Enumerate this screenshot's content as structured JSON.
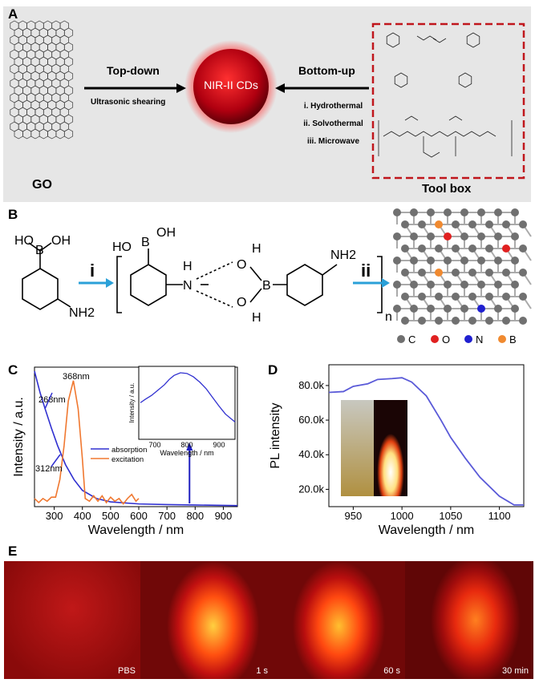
{
  "panel_a": {
    "label": "A",
    "go_label": "GO",
    "top_down": "Top-down",
    "top_down_method": "Ultrasonic shearing",
    "center": "NIR-II CDs",
    "bottom_up": "Bottom-up",
    "bottom_up_methods": [
      "i. Hydrothermal",
      "ii. Solvothermal",
      "iii. Microwave"
    ],
    "toolbox_label": "Tool box",
    "colors": {
      "background": "#e6e6e6",
      "sphere": "#c0101a",
      "toolbox_border": "#c0161c"
    }
  },
  "panel_b": {
    "label": "B",
    "step_i": "i",
    "step_ii": "ii",
    "subscript_n": "n",
    "monomer": {
      "b": "B",
      "ho": "HO",
      "oh": "OH",
      "nh2": "NH2"
    },
    "legend": [
      {
        "symbol": "C",
        "color": "#707070"
      },
      {
        "symbol": "O",
        "color": "#e02020"
      },
      {
        "symbol": "N",
        "color": "#2020d0"
      },
      {
        "symbol": "B",
        "color": "#f08a30"
      }
    ]
  },
  "panel_c": {
    "label": "C"
  },
  "panel_d": {
    "label": "D"
  },
  "panel_e": {
    "label": "E",
    "frames": [
      "PBS",
      "1 s",
      "60 s",
      "30 min"
    ]
  },
  "chart_data": [
    {
      "type": "line",
      "panel": "C",
      "xlabel": "Wavelength / nm",
      "ylabel": "Intensity / a.u.",
      "xlim": [
        230,
        950
      ],
      "xticks": [
        300,
        400,
        500,
        600,
        700,
        800,
        900
      ],
      "legend_placement": "center",
      "series": [
        {
          "name": "absorption",
          "color": "#3030d0",
          "x": [
            230,
            250,
            268,
            290,
            312,
            340,
            370,
            400,
            450,
            500,
            600,
            700,
            800,
            950
          ],
          "y": [
            1.0,
            0.84,
            0.72,
            0.58,
            0.45,
            0.31,
            0.2,
            0.12,
            0.06,
            0.035,
            0.02,
            0.015,
            0.012,
            0.008
          ]
        },
        {
          "name": "excitation",
          "color": "#f07830",
          "x": [
            230,
            245,
            260,
            275,
            290,
            305,
            320,
            335,
            350,
            368,
            385,
            400,
            410,
            425,
            440,
            455,
            470,
            485,
            500,
            515,
            530,
            545,
            560,
            575,
            590,
            600
          ],
          "y": [
            0.06,
            0.03,
            0.06,
            0.04,
            0.07,
            0.07,
            0.2,
            0.45,
            0.78,
            0.93,
            0.72,
            0.35,
            0.06,
            0.04,
            0.08,
            0.04,
            0.08,
            0.03,
            0.07,
            0.04,
            0.06,
            0.02,
            0.06,
            0.09,
            0.04,
            0.06
          ]
        }
      ],
      "annotations": [
        "268nm",
        "312nm",
        "368nm"
      ],
      "arrow_at_nm": 780,
      "inset": {
        "xlabel": "Wavelength / nm",
        "ylabel": "Intensity / a.u.",
        "xlim": [
          650,
          950
        ],
        "xticks": [
          700,
          800,
          900
        ],
        "x": [
          655,
          670,
          690,
          710,
          730,
          745,
          760,
          780,
          800,
          820,
          840,
          860,
          880,
          900,
          920,
          940,
          950
        ],
        "y": [
          0.55,
          0.6,
          0.66,
          0.74,
          0.82,
          0.9,
          0.96,
          1.0,
          0.99,
          0.94,
          0.86,
          0.76,
          0.63,
          0.5,
          0.38,
          0.3,
          0.26
        ]
      }
    },
    {
      "type": "line",
      "panel": "D",
      "xlabel": "Wavelength / nm",
      "ylabel": "PL intensity",
      "xlim": [
        925,
        1125
      ],
      "ylim": [
        10000,
        92000
      ],
      "xticks": [
        950,
        1000,
        1050,
        1100
      ],
      "yticks": [
        20000,
        40000,
        60000,
        80000
      ],
      "ytick_labels": [
        "20.0k",
        "40.0k",
        "60.0k",
        "80.0k"
      ],
      "series": [
        {
          "color": "#5a5ad8",
          "x": [
            925,
            940,
            950,
            965,
            975,
            990,
            1000,
            1010,
            1025,
            1040,
            1050,
            1065,
            1080,
            1100,
            1115,
            1125
          ],
          "y": [
            76000,
            76500,
            79500,
            81000,
            83500,
            84000,
            84500,
            82000,
            74000,
            60000,
            50000,
            38000,
            27000,
            16000,
            11000,
            11000
          ]
        }
      ]
    }
  ]
}
